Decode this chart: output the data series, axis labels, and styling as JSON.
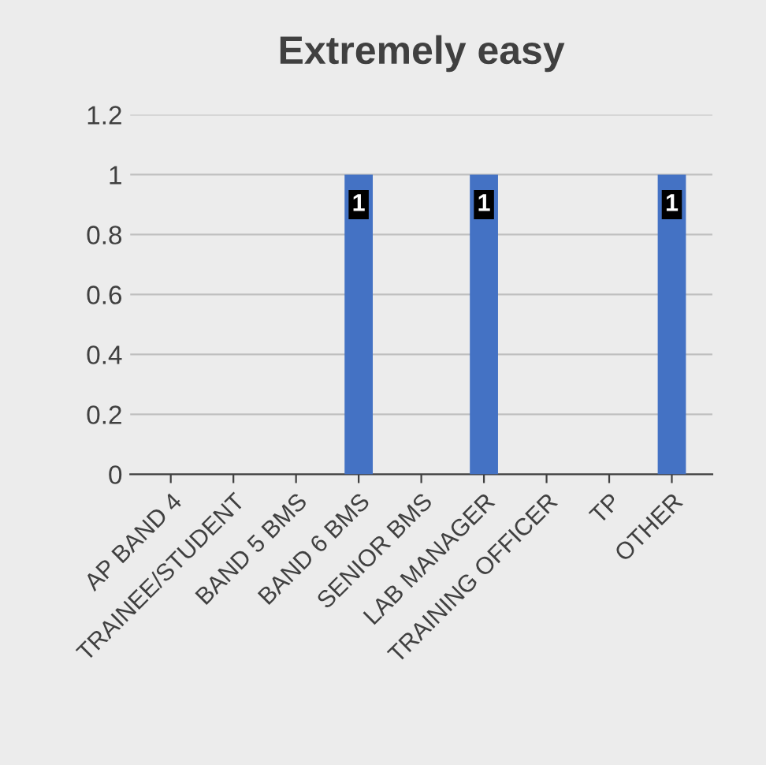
{
  "chart_data": {
    "type": "bar",
    "title": "Extremely easy",
    "categories": [
      "AP BAND 4",
      "TRAINEE/STUDENT",
      "BAND 5 BMS",
      "BAND 6 BMS",
      "SENIOR BMS",
      "LAB MANAGER",
      "TRAINING OFFICER",
      "TP",
      "OTHER"
    ],
    "values": [
      0,
      0,
      0,
      1,
      0,
      1,
      0,
      0,
      1
    ],
    "value_labels": [
      null,
      null,
      null,
      "1",
      null,
      "1",
      null,
      null,
      "1"
    ],
    "color": "#4472c4",
    "ylim": [
      0,
      1.2
    ],
    "yticks": [
      0,
      0.2,
      0.4,
      0.6,
      0.8,
      1,
      1.2
    ],
    "grid": "y",
    "legend": false
  }
}
